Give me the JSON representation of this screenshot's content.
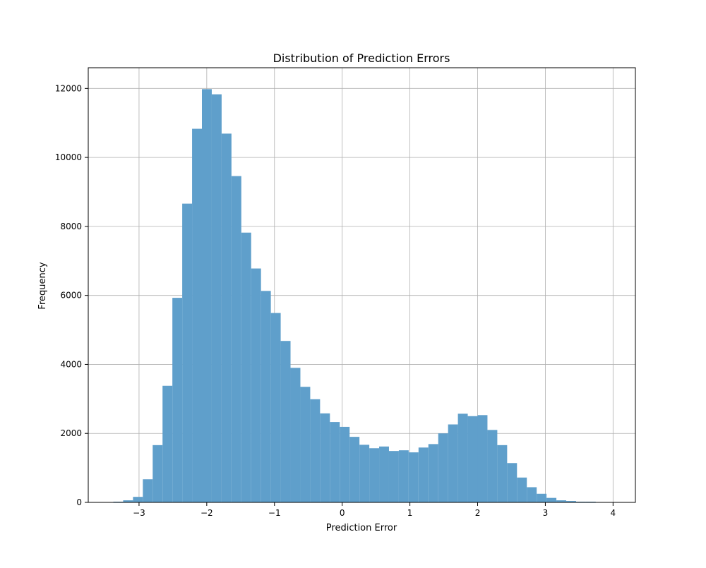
{
  "chart_data": {
    "type": "bar",
    "subtype": "histogram",
    "title": "Distribution of Prediction Errors",
    "xlabel": "Prediction Error",
    "ylabel": "Frequency",
    "xlim": [
      -3.75,
      4.33
    ],
    "ylim": [
      0,
      12600
    ],
    "xticks": [
      -3,
      -2,
      -1,
      0,
      1,
      2,
      3,
      4
    ],
    "xtick_labels": [
      "−3",
      "−2",
      "−1",
      "0",
      "1",
      "2",
      "3",
      "4"
    ],
    "yticks": [
      0,
      2000,
      4000,
      6000,
      8000,
      10000,
      12000
    ],
    "ytick_labels": [
      "0",
      "2000",
      "4000",
      "6000",
      "8000",
      "10000",
      "12000"
    ],
    "grid": true,
    "bar_color": "#5f9fcb",
    "bin_start": -3.38,
    "bin_width": 0.1454,
    "values": [
      20,
      60,
      160,
      670,
      1660,
      3380,
      5930,
      8660,
      10830,
      11980,
      11830,
      10690,
      9460,
      7820,
      6780,
      6130,
      5490,
      4680,
      3900,
      3350,
      2990,
      2580,
      2330,
      2190,
      1900,
      1670,
      1570,
      1620,
      1490,
      1510,
      1450,
      1590,
      1690,
      2000,
      2260,
      2570,
      2500,
      2530,
      2100,
      1660,
      1140,
      720,
      440,
      250,
      130,
      60,
      40,
      20,
      20
    ]
  }
}
